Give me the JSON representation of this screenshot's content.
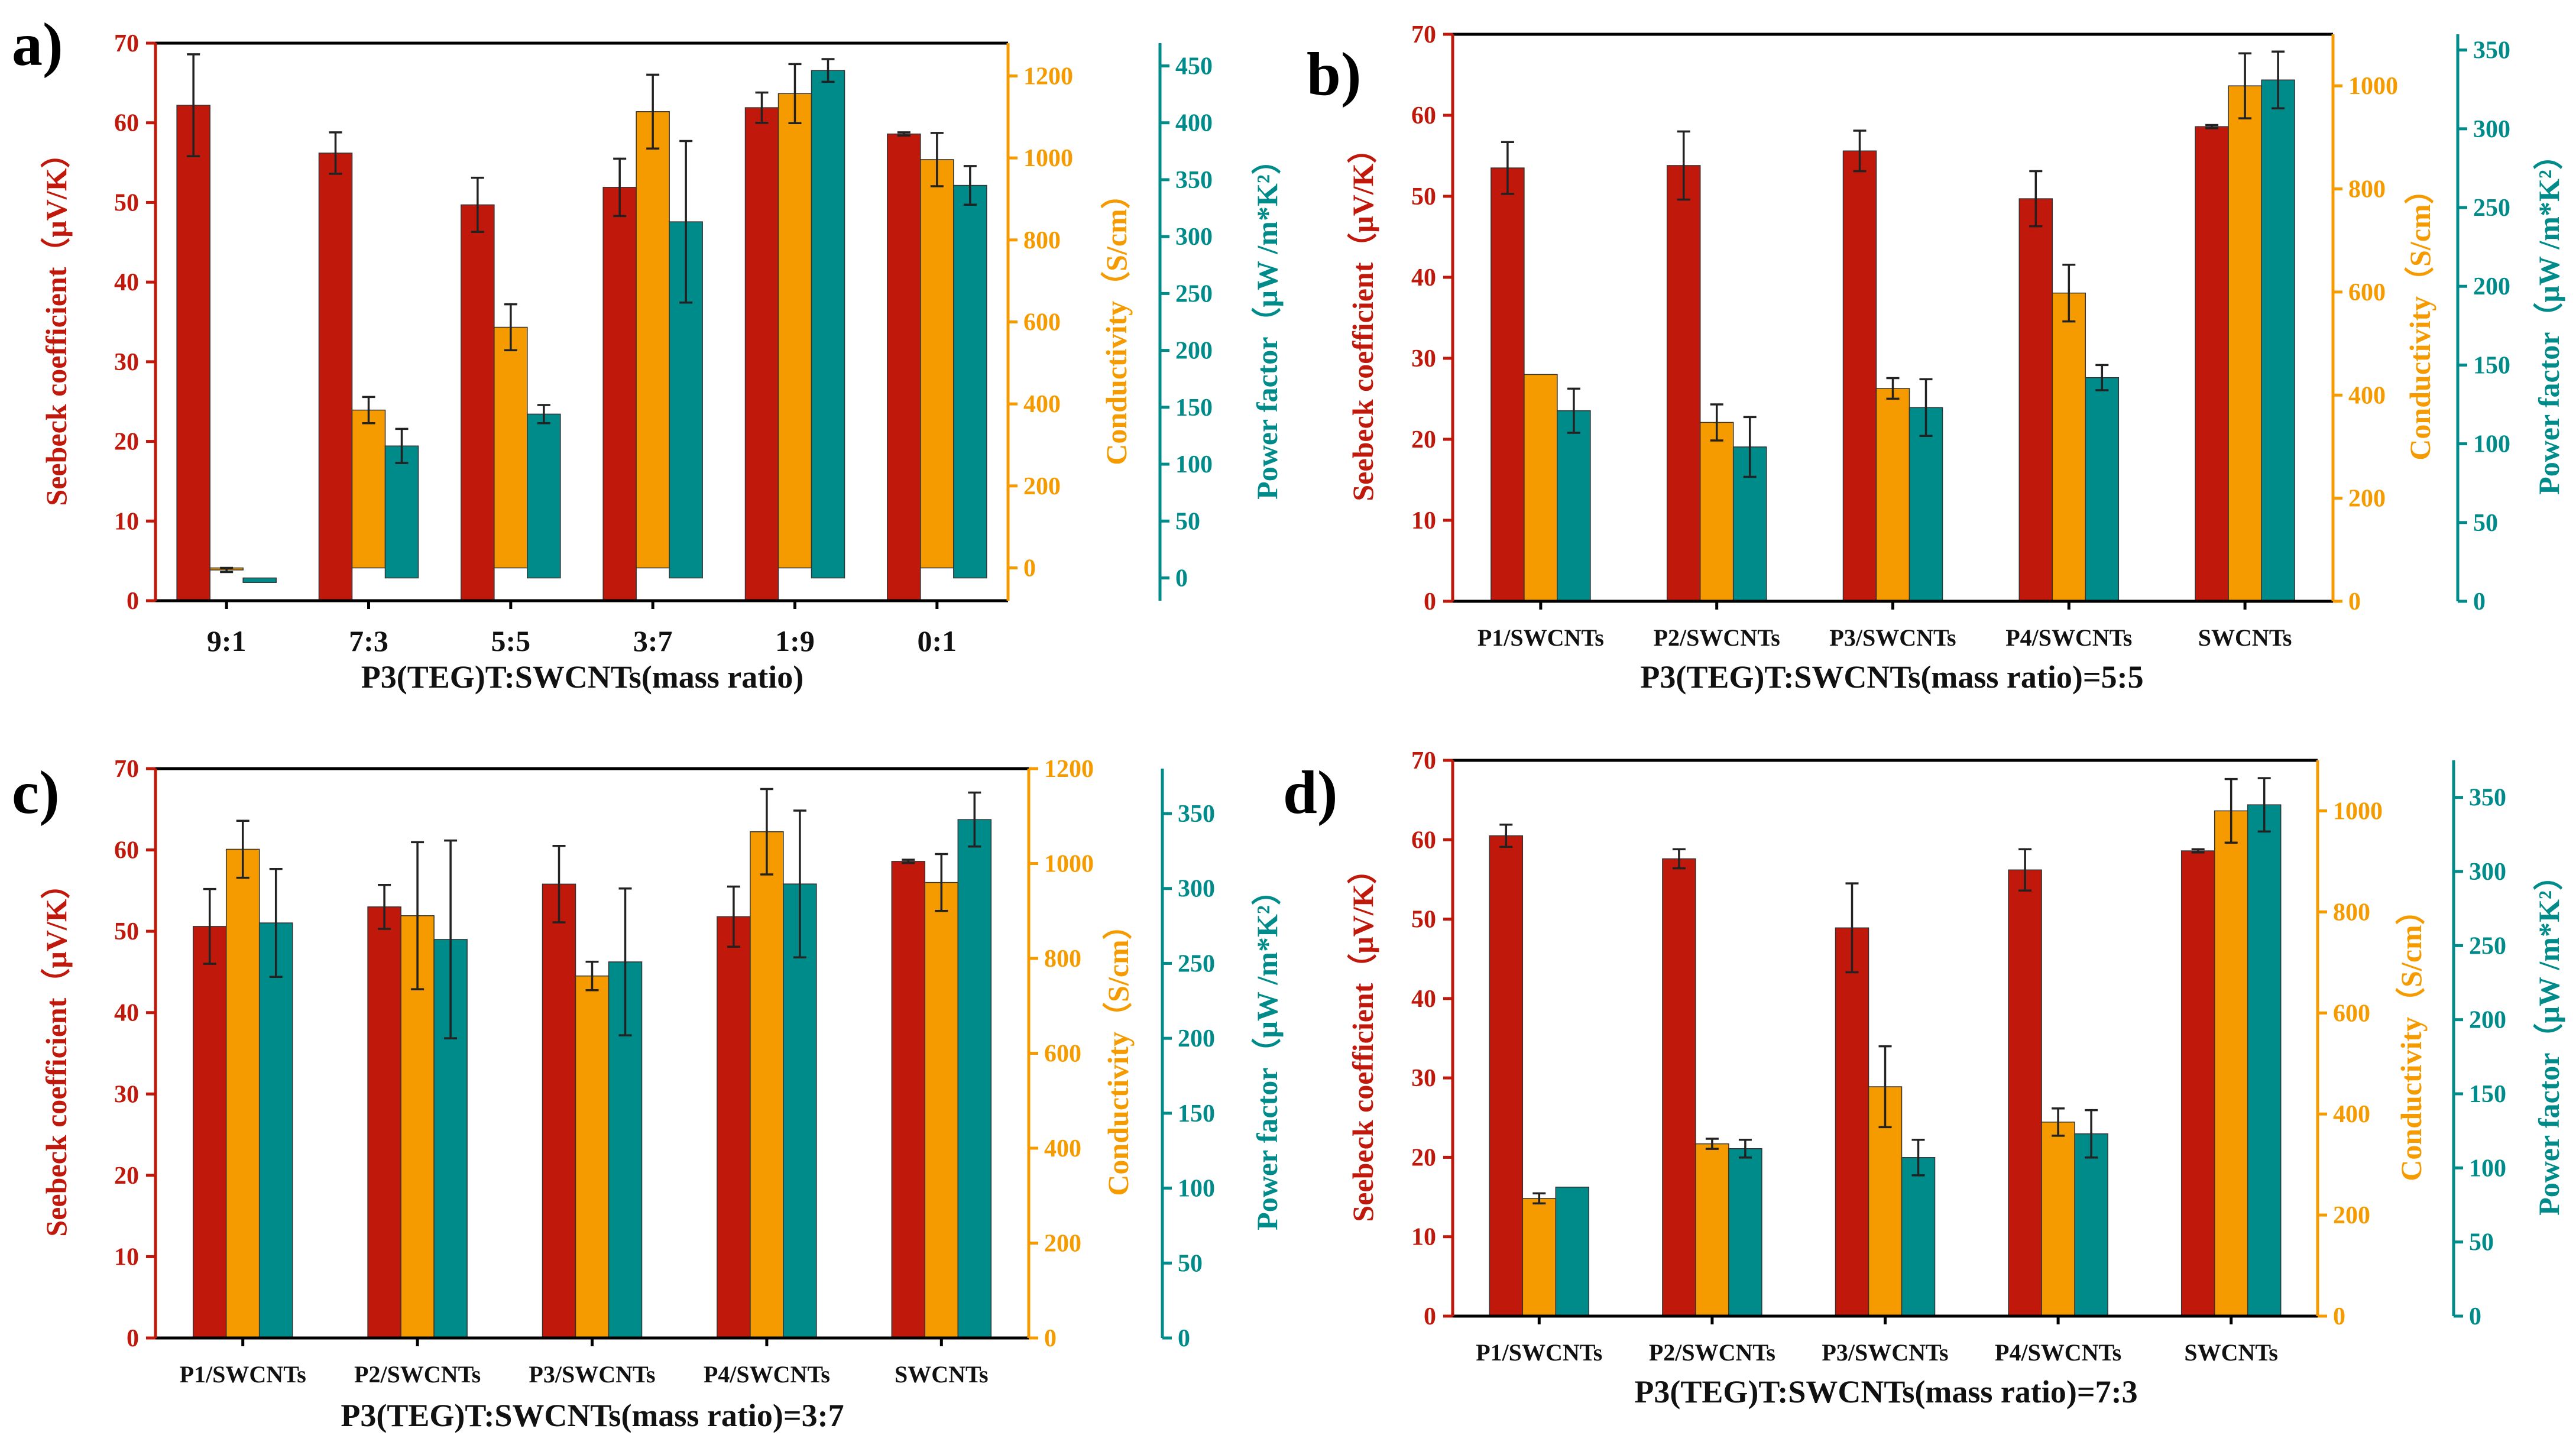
{
  "colors": {
    "seebeck": "#C0180B",
    "conductivity": "#F59B00",
    "power_factor": "#008B8B",
    "frame": "#000000"
  },
  "chart_data": [
    {
      "type": "bar",
      "panel": "a)",
      "xlabel": "P3(TEG)T:SWCNTs(mass ratio)",
      "categories": [
        "9:1",
        "7:3",
        "5:5",
        "3:7",
        "1:9",
        "0:1"
      ],
      "y_axes": [
        {
          "label": "Seebeck coefficient（μV/K）",
          "lim": [
            0,
            70
          ],
          "ticks": [
            0,
            10,
            20,
            30,
            40,
            50,
            60,
            70
          ]
        },
        {
          "label": "Conductivity（S/cm）",
          "lim": [
            -80,
            1280
          ],
          "ticks": [
            0,
            200,
            400,
            600,
            800,
            1000,
            1200
          ]
        },
        {
          "label": "Power factor（μW /m*K²）",
          "lim": [
            -20,
            470
          ],
          "ticks": [
            0,
            50,
            100,
            150,
            200,
            250,
            300,
            350,
            400,
            450
          ]
        }
      ],
      "series": [
        {
          "name": "Seebeck coefficient",
          "axis": 0,
          "values": [
            62.2,
            56.2,
            49.7,
            51.9,
            61.9,
            58.6
          ],
          "errors": [
            6.4,
            2.6,
            3.4,
            3.6,
            1.9,
            0.2
          ]
        },
        {
          "name": "Conductivity",
          "axis": 1,
          "values": [
            -5,
            385,
            587,
            1113,
            1157,
            996
          ],
          "errors": [
            5,
            32,
            56,
            90,
            72,
            65
          ]
        },
        {
          "name": "Power factor",
          "axis": 2,
          "values": [
            -4,
            116,
            144,
            313,
            446,
            345
          ],
          "errors": [
            0,
            15,
            8,
            71,
            10,
            17
          ]
        }
      ]
    },
    {
      "type": "bar",
      "panel": "b)",
      "xlabel": "P3(TEG)T:SWCNTs(mass ratio)=5:5",
      "categories": [
        "P1/SWCNTs",
        "P2/SWCNTs",
        "P3/SWCNTs",
        "P4/SWCNTs",
        "SWCNTs"
      ],
      "y_axes": [
        {
          "label": "Seebeck coefficient（μV/K）",
          "lim": [
            0,
            70
          ],
          "ticks": [
            0,
            10,
            20,
            30,
            40,
            50,
            60,
            70
          ]
        },
        {
          "label": "Conductivity（S/cm）",
          "lim": [
            0,
            1100
          ],
          "ticks": [
            0,
            200,
            400,
            600,
            800,
            1000
          ]
        },
        {
          "label": "Power factor（μW /m*K²）",
          "lim": [
            0,
            360
          ],
          "ticks": [
            0,
            50,
            100,
            150,
            200,
            250,
            300,
            350
          ]
        }
      ],
      "series": [
        {
          "name": "Seebeck coefficient",
          "axis": 0,
          "values": [
            53.5,
            53.8,
            55.6,
            49.7,
            58.6
          ],
          "errors": [
            3.2,
            4.2,
            2.5,
            3.4,
            0.2
          ]
        },
        {
          "name": "Conductivity",
          "axis": 1,
          "values": [
            440,
            347,
            413,
            598,
            1000
          ],
          "errors": [
            0,
            35,
            20,
            55,
            63
          ]
        },
        {
          "name": "Power factor",
          "axis": 2,
          "values": [
            121,
            98,
            123,
            142,
            331
          ],
          "errors": [
            14,
            19,
            18,
            8,
            18
          ]
        }
      ]
    },
    {
      "type": "bar",
      "panel": "c)",
      "xlabel": "P3(TEG)T:SWCNTs(mass ratio)=3:7",
      "categories": [
        "P1/SWCNTs",
        "P2/SWCNTs",
        "P3/SWCNTs",
        "P4/SWCNTs",
        "SWCNTs"
      ],
      "y_axes": [
        {
          "label": "Seebeck coefficient（μV/K）",
          "lim": [
            0,
            70
          ],
          "ticks": [
            0,
            10,
            20,
            30,
            40,
            50,
            60,
            70
          ]
        },
        {
          "label": "Conductivity（S/cm）",
          "lim": [
            0,
            1200
          ],
          "ticks": [
            0,
            200,
            400,
            600,
            800,
            1000,
            1200
          ]
        },
        {
          "label": "Power factor（μW /m*K²）",
          "lim": [
            0,
            380
          ],
          "ticks": [
            0,
            50,
            100,
            150,
            200,
            250,
            300,
            350
          ]
        }
      ],
      "series": [
        {
          "name": "Seebeck coefficient",
          "axis": 0,
          "values": [
            50.6,
            53.0,
            55.8,
            51.8,
            58.6
          ],
          "errors": [
            4.6,
            2.7,
            4.7,
            3.7,
            0.2
          ]
        },
        {
          "name": "Conductivity",
          "axis": 1,
          "values": [
            1030,
            890,
            763,
            1067,
            960
          ],
          "errors": [
            60,
            155,
            30,
            90,
            60
          ]
        },
        {
          "name": "Power factor",
          "axis": 2,
          "values": [
            277,
            266,
            251,
            303,
            346
          ],
          "errors": [
            36,
            66,
            49,
            49,
            18
          ]
        }
      ]
    },
    {
      "type": "bar",
      "panel": "d)",
      "xlabel": "P3(TEG)T:SWCNTs(mass ratio)=7:3",
      "categories": [
        "P1/SWCNTs",
        "P2/SWCNTs",
        "P3/SWCNTs",
        "P4/SWCNTs",
        "SWCNTs"
      ],
      "y_axes": [
        {
          "label": "Seebeck coefficient（μV/K）",
          "lim": [
            0,
            70
          ],
          "ticks": [
            0,
            10,
            20,
            30,
            40,
            50,
            60,
            70
          ]
        },
        {
          "label": "Conductivity（S/cm）",
          "lim": [
            0,
            1100
          ],
          "ticks": [
            0,
            200,
            400,
            600,
            800,
            1000
          ]
        },
        {
          "label": "Power factor（μW /m*K²）",
          "lim": [
            0,
            375
          ],
          "ticks": [
            0,
            50,
            100,
            150,
            200,
            250,
            300,
            350
          ]
        }
      ],
      "series": [
        {
          "name": "Seebeck coefficient",
          "axis": 0,
          "values": [
            60.5,
            57.6,
            48.9,
            56.2,
            58.6
          ],
          "errors": [
            1.4,
            1.2,
            5.6,
            2.6,
            0.2
          ]
        },
        {
          "name": "Conductivity",
          "axis": 1,
          "values": [
            233,
            341,
            454,
            384,
            1000
          ],
          "errors": [
            10,
            10,
            80,
            27,
            63
          ]
        },
        {
          "name": "Power factor",
          "axis": 2,
          "values": [
            87,
            113,
            107,
            123,
            345
          ],
          "errors": [
            0,
            6,
            12,
            16,
            18
          ]
        }
      ]
    }
  ]
}
